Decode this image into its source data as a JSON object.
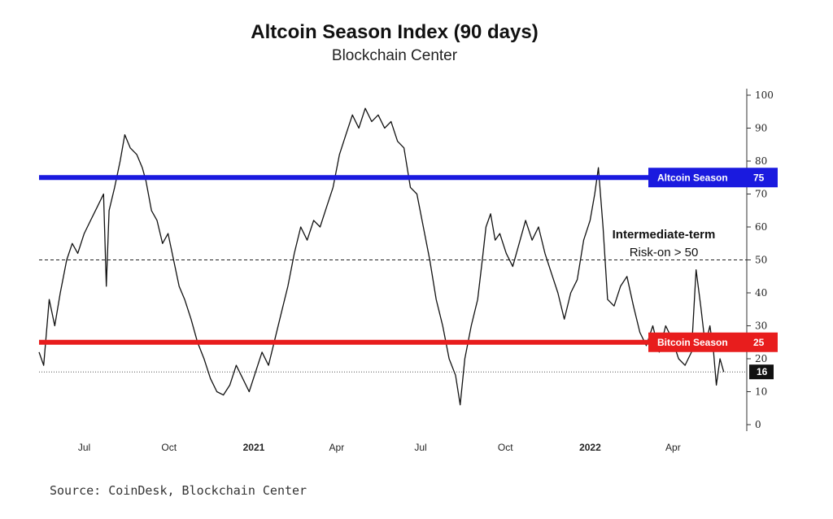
{
  "chart_data": {
    "type": "line",
    "title": "Altcoin Season Index (90 days)",
    "subtitle": "Blockchain Center",
    "source": "Source: CoinDesk, Blockchain Center",
    "xlabel": "",
    "ylabel": "",
    "ylim": [
      0,
      100
    ],
    "y_ticks": [
      "0",
      "10",
      "20",
      "30",
      "40",
      "50",
      "60",
      "70",
      "80",
      "90",
      "100"
    ],
    "y_axis_side": "right",
    "x_ticks": [
      {
        "label": "Jul",
        "date": "2020-07-01",
        "bold": false
      },
      {
        "label": "Oct",
        "date": "2020-10-01",
        "bold": false
      },
      {
        "label": "2021",
        "date": "2021-01-01",
        "bold": true
      },
      {
        "label": "Apr",
        "date": "2021-04-01",
        "bold": false
      },
      {
        "label": "Jul",
        "date": "2021-07-01",
        "bold": false
      },
      {
        "label": "Oct",
        "date": "2021-10-01",
        "bold": false
      },
      {
        "label": "2022",
        "date": "2022-01-01",
        "bold": true
      },
      {
        "label": "Apr",
        "date": "2022-04-01",
        "bold": false
      }
    ],
    "xlim": [
      "2020-05-13",
      "2022-06-20"
    ],
    "thresholds": [
      {
        "label": "Altcoin Season",
        "value": 75,
        "value_label": "75",
        "color": "#1a1adf"
      },
      {
        "label": "Bitcoin Season",
        "value": 25,
        "value_label": "25",
        "color": "#e81d1d"
      }
    ],
    "reference_line": {
      "value": 50,
      "style": "dashed"
    },
    "current": {
      "value": 16,
      "value_label": "16",
      "style": "dotted"
    },
    "annotation": {
      "line1": "Intermediate-term",
      "line2": "Risk-on > 50"
    },
    "series": [
      {
        "color": "#111111",
        "points": [
          [
            "2020-05-13",
            22
          ],
          [
            "2020-05-18",
            18
          ],
          [
            "2020-05-24",
            38
          ],
          [
            "2020-05-30",
            30
          ],
          [
            "2020-06-05",
            40
          ],
          [
            "2020-06-12",
            50
          ],
          [
            "2020-06-18",
            55
          ],
          [
            "2020-06-24",
            52
          ],
          [
            "2020-07-01",
            58
          ],
          [
            "2020-07-08",
            62
          ],
          [
            "2020-07-15",
            66
          ],
          [
            "2020-07-22",
            70
          ],
          [
            "2020-07-25",
            42
          ],
          [
            "2020-07-28",
            65
          ],
          [
            "2020-08-03",
            72
          ],
          [
            "2020-08-09",
            80
          ],
          [
            "2020-08-14",
            88
          ],
          [
            "2020-08-20",
            84
          ],
          [
            "2020-08-27",
            82
          ],
          [
            "2020-09-02",
            78
          ],
          [
            "2020-09-06",
            74
          ],
          [
            "2020-09-12",
            65
          ],
          [
            "2020-09-18",
            62
          ],
          [
            "2020-09-24",
            55
          ],
          [
            "2020-09-30",
            58
          ],
          [
            "2020-10-06",
            50
          ],
          [
            "2020-10-12",
            42
          ],
          [
            "2020-10-18",
            38
          ],
          [
            "2020-10-25",
            32
          ],
          [
            "2020-11-01",
            25
          ],
          [
            "2020-11-08",
            20
          ],
          [
            "2020-11-15",
            14
          ],
          [
            "2020-11-22",
            10
          ],
          [
            "2020-11-29",
            9
          ],
          [
            "2020-12-06",
            12
          ],
          [
            "2020-12-13",
            18
          ],
          [
            "2020-12-20",
            14
          ],
          [
            "2020-12-27",
            10
          ],
          [
            "2021-01-03",
            16
          ],
          [
            "2021-01-10",
            22
          ],
          [
            "2021-01-17",
            18
          ],
          [
            "2021-01-24",
            26
          ],
          [
            "2021-01-31",
            34
          ],
          [
            "2021-02-07",
            42
          ],
          [
            "2021-02-14",
            52
          ],
          [
            "2021-02-21",
            60
          ],
          [
            "2021-02-28",
            56
          ],
          [
            "2021-03-07",
            62
          ],
          [
            "2021-03-14",
            60
          ],
          [
            "2021-03-21",
            66
          ],
          [
            "2021-03-28",
            72
          ],
          [
            "2021-04-04",
            82
          ],
          [
            "2021-04-11",
            88
          ],
          [
            "2021-04-18",
            94
          ],
          [
            "2021-04-25",
            90
          ],
          [
            "2021-05-02",
            96
          ],
          [
            "2021-05-09",
            92
          ],
          [
            "2021-05-16",
            94
          ],
          [
            "2021-05-23",
            90
          ],
          [
            "2021-05-30",
            92
          ],
          [
            "2021-06-06",
            86
          ],
          [
            "2021-06-13",
            84
          ],
          [
            "2021-06-20",
            72
          ],
          [
            "2021-06-27",
            70
          ],
          [
            "2021-07-04",
            60
          ],
          [
            "2021-07-11",
            50
          ],
          [
            "2021-07-18",
            38
          ],
          [
            "2021-07-25",
            30
          ],
          [
            "2021-08-01",
            20
          ],
          [
            "2021-08-08",
            15
          ],
          [
            "2021-08-13",
            6
          ],
          [
            "2021-08-18",
            20
          ],
          [
            "2021-08-25",
            30
          ],
          [
            "2021-09-01",
            38
          ],
          [
            "2021-09-06",
            50
          ],
          [
            "2021-09-10",
            60
          ],
          [
            "2021-09-15",
            64
          ],
          [
            "2021-09-20",
            56
          ],
          [
            "2021-09-25",
            58
          ],
          [
            "2021-10-02",
            52
          ],
          [
            "2021-10-09",
            48
          ],
          [
            "2021-10-16",
            55
          ],
          [
            "2021-10-23",
            62
          ],
          [
            "2021-10-30",
            56
          ],
          [
            "2021-11-06",
            60
          ],
          [
            "2021-11-13",
            52
          ],
          [
            "2021-11-20",
            46
          ],
          [
            "2021-11-27",
            40
          ],
          [
            "2021-12-04",
            32
          ],
          [
            "2021-12-11",
            40
          ],
          [
            "2021-12-18",
            44
          ],
          [
            "2021-12-25",
            56
          ],
          [
            "2022-01-01",
            62
          ],
          [
            "2022-01-06",
            70
          ],
          [
            "2022-01-10",
            78
          ],
          [
            "2022-01-15",
            60
          ],
          [
            "2022-01-20",
            38
          ],
          [
            "2022-01-27",
            36
          ],
          [
            "2022-02-03",
            42
          ],
          [
            "2022-02-10",
            45
          ],
          [
            "2022-02-17",
            36
          ],
          [
            "2022-02-24",
            28
          ],
          [
            "2022-03-03",
            24
          ],
          [
            "2022-03-10",
            30
          ],
          [
            "2022-03-17",
            22
          ],
          [
            "2022-03-24",
            30
          ],
          [
            "2022-03-31",
            26
          ],
          [
            "2022-04-07",
            20
          ],
          [
            "2022-04-14",
            18
          ],
          [
            "2022-04-21",
            22
          ],
          [
            "2022-04-26",
            47
          ],
          [
            "2022-05-01",
            36
          ],
          [
            "2022-05-06",
            24
          ],
          [
            "2022-05-11",
            30
          ],
          [
            "2022-05-15",
            22
          ],
          [
            "2022-05-18",
            12
          ],
          [
            "2022-05-22",
            20
          ],
          [
            "2022-05-26",
            16
          ]
        ]
      }
    ]
  }
}
